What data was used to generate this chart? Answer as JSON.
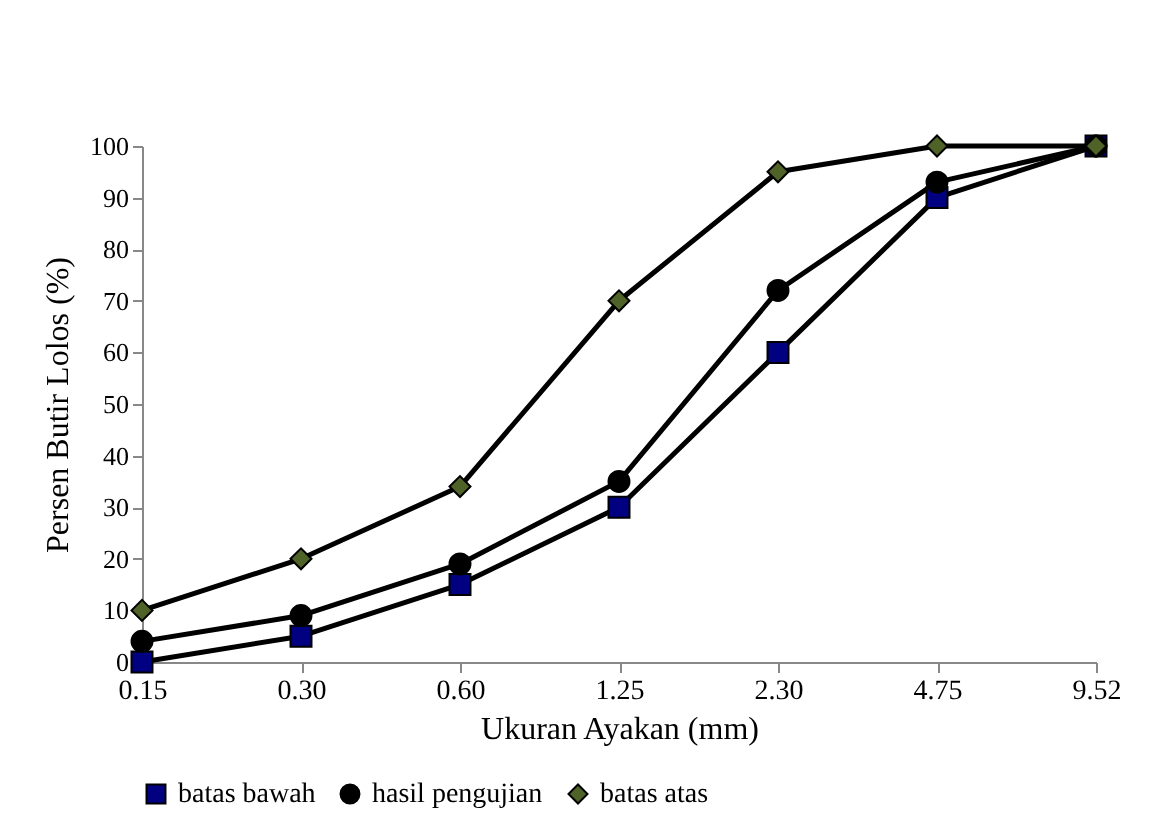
{
  "chart_data": {
    "type": "line",
    "xlabel": "Ukuran Ayakan (mm)",
    "ylabel": "Persen Butir Lolos (%)",
    "categories": [
      "0.15",
      "0.30",
      "0.60",
      "1.25",
      "2.30",
      "4.75",
      "9.52"
    ],
    "series": [
      {
        "name": "batas bawah",
        "color": "#000080",
        "marker": "square",
        "values": [
          0,
          5,
          15,
          30,
          60,
          90,
          100
        ]
      },
      {
        "name": "hasil pengujian",
        "color": "#000000",
        "marker": "circle",
        "values": [
          4,
          9,
          19,
          35,
          72,
          93,
          100
        ]
      },
      {
        "name": "batas atas",
        "color": "#4f6228",
        "marker": "diamond",
        "values": [
          10,
          20,
          34,
          70,
          95,
          100,
          100
        ]
      }
    ],
    "ylim": [
      0,
      100
    ],
    "yticks": [
      0,
      10,
      20,
      30,
      40,
      50,
      60,
      70,
      80,
      90,
      100
    ],
    "grid": false,
    "legend": "bottom",
    "line_style": "solid"
  }
}
